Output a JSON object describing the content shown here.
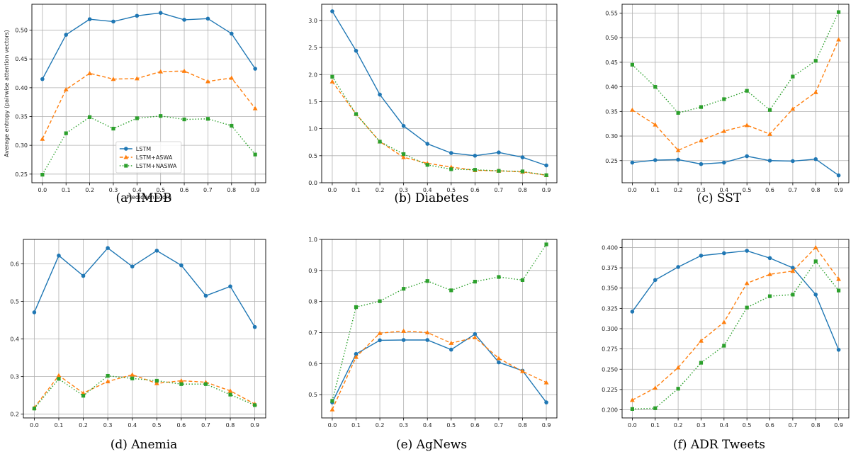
{
  "series_styles": [
    {
      "name": "LSTM",
      "color": "#1f77b4",
      "marker": "circle",
      "dash": ""
    },
    {
      "name": "LSTM+ASWA",
      "color": "#ff7f0e",
      "marker": "triangle",
      "dash": "5,3"
    },
    {
      "name": "LSTM+NASWA",
      "color": "#2ca02c",
      "marker": "square",
      "dash": "1.5,2.5"
    }
  ],
  "chart_data": [
    {
      "type": "line",
      "caption": "(a) IMDB",
      "xlabel": "Prediction score",
      "ylabel": "Average entropy (pairwise attention vectors)",
      "x": [
        0.0,
        0.1,
        0.2,
        0.3,
        0.4,
        0.5,
        0.6,
        0.7,
        0.8,
        0.9
      ],
      "xticks": [
        "0.0",
        "0.1",
        "0.2",
        "0.3",
        "0.4",
        "0.5",
        "0.6",
        "0.7",
        "0.8",
        "0.9"
      ],
      "ylim": [
        0.235,
        0.545
      ],
      "yticks": [
        0.25,
        0.3,
        0.35,
        0.4,
        0.45,
        0.5
      ],
      "yticklabels": [
        "0.25",
        "0.30",
        "0.35",
        "0.40",
        "0.45",
        "0.50"
      ],
      "legend": "lower-center",
      "grid": true,
      "series": [
        {
          "name": "LSTM",
          "values": [
            0.415,
            0.492,
            0.519,
            0.515,
            0.525,
            0.53,
            0.518,
            0.52,
            0.494,
            0.433
          ]
        },
        {
          "name": "LSTM+ASWA",
          "values": [
            0.311,
            0.397,
            0.425,
            0.415,
            0.416,
            0.428,
            0.429,
            0.411,
            0.417,
            0.364
          ]
        },
        {
          "name": "LSTM+NASWA",
          "values": [
            0.249,
            0.321,
            0.349,
            0.329,
            0.347,
            0.351,
            0.345,
            0.346,
            0.334,
            0.284
          ]
        }
      ]
    },
    {
      "type": "line",
      "caption": "(b) Diabetes",
      "xlabel": "",
      "ylabel": "",
      "x": [
        0.0,
        0.1,
        0.2,
        0.3,
        0.4,
        0.5,
        0.6,
        0.7,
        0.8,
        0.9
      ],
      "xticks": [
        "0.0",
        "0.1",
        "0.2",
        "0.3",
        "0.4",
        "0.5",
        "0.6",
        "0.7",
        "0.8",
        "0.9"
      ],
      "ylim": [
        0.0,
        3.3
      ],
      "yticks": [
        0.0,
        0.5,
        1.0,
        1.5,
        2.0,
        2.5,
        3.0
      ],
      "yticklabels": [
        "0.0",
        "0.5",
        "1.0",
        "1.5",
        "2.0",
        "2.5",
        "3.0"
      ],
      "grid": true,
      "series": [
        {
          "name": "LSTM",
          "values": [
            3.17,
            2.44,
            1.63,
            1.05,
            0.72,
            0.55,
            0.5,
            0.56,
            0.47,
            0.32
          ]
        },
        {
          "name": "LSTM+ASWA",
          "values": [
            1.87,
            1.27,
            0.76,
            0.47,
            0.36,
            0.29,
            0.23,
            0.22,
            0.2,
            0.14
          ]
        },
        {
          "name": "LSTM+NASWA",
          "values": [
            1.96,
            1.27,
            0.76,
            0.53,
            0.33,
            0.25,
            0.24,
            0.22,
            0.21,
            0.14
          ]
        }
      ]
    },
    {
      "type": "line",
      "caption": "(c) SST",
      "xlabel": "",
      "ylabel": "",
      "x": [
        0.0,
        0.1,
        0.2,
        0.3,
        0.4,
        0.5,
        0.6,
        0.7,
        0.8,
        0.9
      ],
      "xticks": [
        "0.0",
        "0.1",
        "0.2",
        "0.3",
        "0.4",
        "0.5",
        "0.6",
        "0.7",
        "0.8",
        "0.9"
      ],
      "ylim": [
        0.205,
        0.568
      ],
      "yticks": [
        0.25,
        0.3,
        0.35,
        0.4,
        0.45,
        0.5,
        0.55
      ],
      "yticklabels": [
        "0.25",
        "0.30",
        "0.35",
        "0.40",
        "0.45",
        "0.50",
        "0.55"
      ],
      "grid": true,
      "series": [
        {
          "name": "LSTM",
          "values": [
            0.246,
            0.251,
            0.252,
            0.243,
            0.246,
            0.259,
            0.25,
            0.249,
            0.253,
            0.22
          ]
        },
        {
          "name": "LSTM+ASWA",
          "values": [
            0.353,
            0.323,
            0.271,
            0.291,
            0.31,
            0.322,
            0.304,
            0.355,
            0.389,
            0.496
          ]
        },
        {
          "name": "LSTM+NASWA",
          "values": [
            0.445,
            0.4,
            0.347,
            0.359,
            0.375,
            0.392,
            0.353,
            0.421,
            0.453,
            0.552
          ]
        }
      ]
    },
    {
      "type": "line",
      "caption": "(d) Anemia",
      "xlabel": "",
      "ylabel": "",
      "x": [
        0.0,
        0.1,
        0.2,
        0.3,
        0.4,
        0.5,
        0.6,
        0.7,
        0.8,
        0.9
      ],
      "xticks": [
        "0.0",
        "0.1",
        "0.2",
        "0.3",
        "0.4",
        "0.5",
        "0.6",
        "0.7",
        "0.8",
        "0.9"
      ],
      "ylim": [
        0.19,
        0.665
      ],
      "yticks": [
        0.2,
        0.3,
        0.4,
        0.5,
        0.6
      ],
      "yticklabels": [
        "0.2",
        "0.3",
        "0.4",
        "0.5",
        "0.6"
      ],
      "grid": true,
      "series": [
        {
          "name": "LSTM",
          "values": [
            0.471,
            0.622,
            0.568,
            0.642,
            0.593,
            0.635,
            0.596,
            0.515,
            0.54,
            0.432
          ]
        },
        {
          "name": "LSTM+ASWA",
          "values": [
            0.217,
            0.303,
            0.256,
            0.287,
            0.305,
            0.282,
            0.289,
            0.285,
            0.262,
            0.227
          ]
        },
        {
          "name": "LSTM+NASWA",
          "values": [
            0.215,
            0.294,
            0.249,
            0.302,
            0.295,
            0.289,
            0.28,
            0.28,
            0.252,
            0.224
          ]
        }
      ]
    },
    {
      "type": "line",
      "caption": "(e) AgNews",
      "xlabel": "",
      "ylabel": "",
      "x": [
        0.0,
        0.1,
        0.2,
        0.3,
        0.4,
        0.5,
        0.6,
        0.7,
        0.8,
        0.9
      ],
      "xticks": [
        "0.0",
        "0.1",
        "0.2",
        "0.3",
        "0.4",
        "0.5",
        "0.6",
        "0.7",
        "0.8",
        "0.9"
      ],
      "ylim": [
        0.425,
        1.0
      ],
      "yticks": [
        0.5,
        0.6,
        0.7,
        0.8,
        0.9,
        1.0
      ],
      "yticklabels": [
        "0.5",
        "0.6",
        "0.7",
        "0.8",
        "0.9",
        "1.0"
      ],
      "grid": true,
      "series": [
        {
          "name": "LSTM",
          "values": [
            0.475,
            0.631,
            0.675,
            0.676,
            0.676,
            0.645,
            0.695,
            0.604,
            0.577,
            0.475
          ]
        },
        {
          "name": "LSTM+ASWA",
          "values": [
            0.452,
            0.621,
            0.698,
            0.705,
            0.7,
            0.666,
            0.684,
            0.617,
            0.575,
            0.539
          ]
        },
        {
          "name": "LSTM+NASWA",
          "values": [
            0.48,
            0.782,
            0.801,
            0.841,
            0.866,
            0.836,
            0.864,
            0.879,
            0.869,
            0.984
          ]
        }
      ]
    },
    {
      "type": "line",
      "caption": "(f) ADR Tweets",
      "xlabel": "",
      "ylabel": "",
      "x": [
        0.0,
        0.1,
        0.2,
        0.3,
        0.4,
        0.5,
        0.6,
        0.7,
        0.8,
        0.9
      ],
      "xticks": [
        "0.0",
        "0.1",
        "0.2",
        "0.3",
        "0.4",
        "0.5",
        "0.6",
        "0.7",
        "0.8",
        "0.9"
      ],
      "ylim": [
        0.19,
        0.41
      ],
      "yticks": [
        0.2,
        0.225,
        0.25,
        0.275,
        0.3,
        0.325,
        0.35,
        0.375,
        0.4
      ],
      "yticklabels": [
        "0.200",
        "0.225",
        "0.250",
        "0.275",
        "0.300",
        "0.325",
        "0.350",
        "0.375",
        "0.400"
      ],
      "grid": true,
      "series": [
        {
          "name": "LSTM",
          "values": [
            0.321,
            0.36,
            0.376,
            0.39,
            0.393,
            0.396,
            0.387,
            0.375,
            0.342,
            0.274
          ]
        },
        {
          "name": "LSTM+ASWA",
          "values": [
            0.212,
            0.227,
            0.252,
            0.285,
            0.308,
            0.356,
            0.367,
            0.371,
            0.4,
            0.361
          ]
        },
        {
          "name": "LSTM+NASWA",
          "values": [
            0.201,
            0.202,
            0.226,
            0.258,
            0.279,
            0.326,
            0.34,
            0.342,
            0.383,
            0.347
          ]
        }
      ]
    }
  ]
}
